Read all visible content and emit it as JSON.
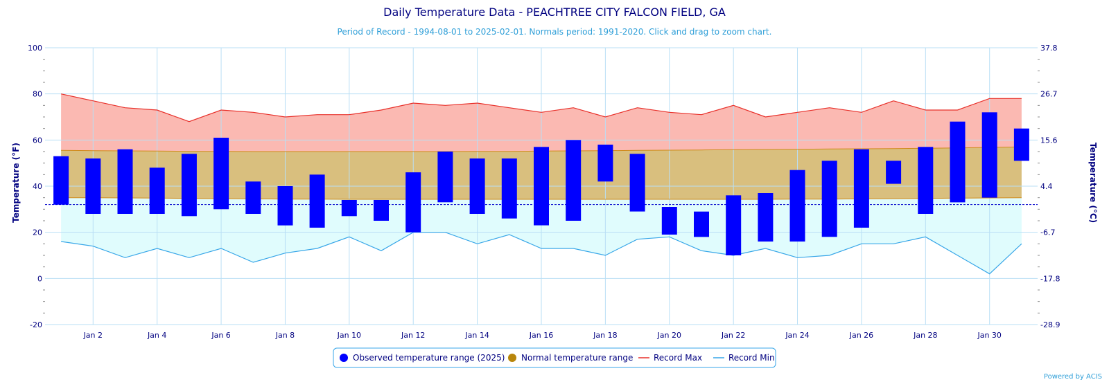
{
  "chart_data": {
    "type": "bar",
    "title": "Daily Temperature Data - PEACHTREE CITY FALCON FIELD, GA",
    "subtitle": "Period of Record - 1994-08-01 to 2025-02-01. Normals period: 1991-2020. Click and drag to zoom chart.",
    "credit": "Powered by ACIS",
    "ylabel_left": "Temperature (°F)",
    "ylabel_right": "Temperature (°C)",
    "ylim": [
      -20,
      100
    ],
    "yticks_left": [
      "-20",
      "0",
      "20",
      "40",
      "60",
      "80",
      "100"
    ],
    "yticks_right": [
      {
        "f": -20,
        "label": "-28.9"
      },
      {
        "f": 0,
        "label": "-17.8"
      },
      {
        "f": 20,
        "label": "-6.7"
      },
      {
        "f": 40,
        "label": "4.4"
      },
      {
        "f": 60,
        "label": "15.6"
      },
      {
        "f": 80,
        "label": "26.7"
      },
      {
        "f": 100,
        "label": "37.8"
      }
    ],
    "xlim": [
      0.5,
      31.5
    ],
    "xticks": [
      {
        "day": 2,
        "label": "Jan 2"
      },
      {
        "day": 4,
        "label": "Jan 4"
      },
      {
        "day": 6,
        "label": "Jan 6"
      },
      {
        "day": 8,
        "label": "Jan 8"
      },
      {
        "day": 10,
        "label": "Jan 10"
      },
      {
        "day": 12,
        "label": "Jan 12"
      },
      {
        "day": 14,
        "label": "Jan 14"
      },
      {
        "day": 16,
        "label": "Jan 16"
      },
      {
        "day": 18,
        "label": "Jan 18"
      },
      {
        "day": 20,
        "label": "Jan 20"
      },
      {
        "day": 22,
        "label": "Jan 22"
      },
      {
        "day": 24,
        "label": "Jan 24"
      },
      {
        "day": 26,
        "label": "Jan 26"
      },
      {
        "day": 28,
        "label": "Jan 28"
      },
      {
        "day": 30,
        "label": "Jan 30"
      }
    ],
    "freezing_line_f": 32,
    "days": [
      1,
      2,
      3,
      4,
      5,
      6,
      7,
      8,
      9,
      10,
      11,
      12,
      13,
      14,
      15,
      16,
      17,
      18,
      19,
      20,
      21,
      22,
      23,
      24,
      25,
      26,
      27,
      28,
      29,
      30,
      31
    ],
    "observed_high": [
      53,
      52,
      56,
      48,
      54,
      61,
      42,
      40,
      45,
      34,
      34,
      46,
      55,
      52,
      52,
      57,
      60,
      58,
      54,
      31,
      29,
      36,
      37,
      47,
      51,
      56,
      51,
      57,
      68,
      72,
      65
    ],
    "observed_low": [
      32,
      28,
      28,
      28,
      27,
      30,
      28,
      23,
      22,
      27,
      25,
      20,
      33,
      28,
      26,
      23,
      25,
      42,
      29,
      19,
      18,
      10,
      16,
      16,
      18,
      22,
      41,
      28,
      33,
      35,
      51
    ],
    "normal_high": [
      55.5,
      55.4,
      55.3,
      55.2,
      55.1,
      55.1,
      55.0,
      55.0,
      55.0,
      55.0,
      55.0,
      55.0,
      55.0,
      55.1,
      55.1,
      55.2,
      55.3,
      55.4,
      55.5,
      55.6,
      55.7,
      55.8,
      55.9,
      56.0,
      56.1,
      56.2,
      56.3,
      56.4,
      56.6,
      56.8,
      57.0
    ],
    "normal_low": [
      35.0,
      35.0,
      34.9,
      34.8,
      34.7,
      34.6,
      34.5,
      34.4,
      34.4,
      34.3,
      34.3,
      34.3,
      34.3,
      34.3,
      34.3,
      34.3,
      34.3,
      34.3,
      34.3,
      34.3,
      34.3,
      34.3,
      34.3,
      34.4,
      34.4,
      34.5,
      34.6,
      34.7,
      34.8,
      34.9,
      35.0
    ],
    "record_max": [
      80,
      77,
      74,
      73,
      68,
      73,
      72,
      70,
      71,
      71,
      73,
      76,
      75,
      76,
      74,
      72,
      74,
      70,
      74,
      72,
      71,
      75,
      70,
      72,
      74,
      72,
      77,
      73,
      73,
      78,
      78
    ],
    "record_min": [
      16,
      14,
      9,
      13,
      9,
      13,
      7,
      11,
      13,
      18,
      12,
      20,
      20,
      15,
      19,
      13,
      13,
      10,
      17,
      18,
      12,
      10,
      13,
      9,
      10,
      15,
      15,
      18,
      10,
      2,
      15
    ],
    "legend": [
      {
        "label": "Observed temperature range (2025)",
        "color": "#0000ff",
        "kind": "dot"
      },
      {
        "label": "Normal temperature range",
        "color": "#b8860b",
        "kind": "dot"
      },
      {
        "label": "Record Max",
        "color": "#e8302a",
        "kind": "line"
      },
      {
        "label": "Record Min",
        "color": "#37a6e8",
        "kind": "line"
      }
    ],
    "colors": {
      "observed": "#0000ff",
      "record_max_line": "#e8302a",
      "record_max_fill": "#fbb9b2",
      "normal_fill": "#d9bf7e",
      "normal_line": "#d08a1a",
      "record_min_line": "#37a6e8",
      "record_min_fill": "#e0fcfd",
      "freezing_line": "#0000cc",
      "grid": "#b9dff5"
    },
    "grid": true,
    "legend_position": "bottom-center"
  }
}
